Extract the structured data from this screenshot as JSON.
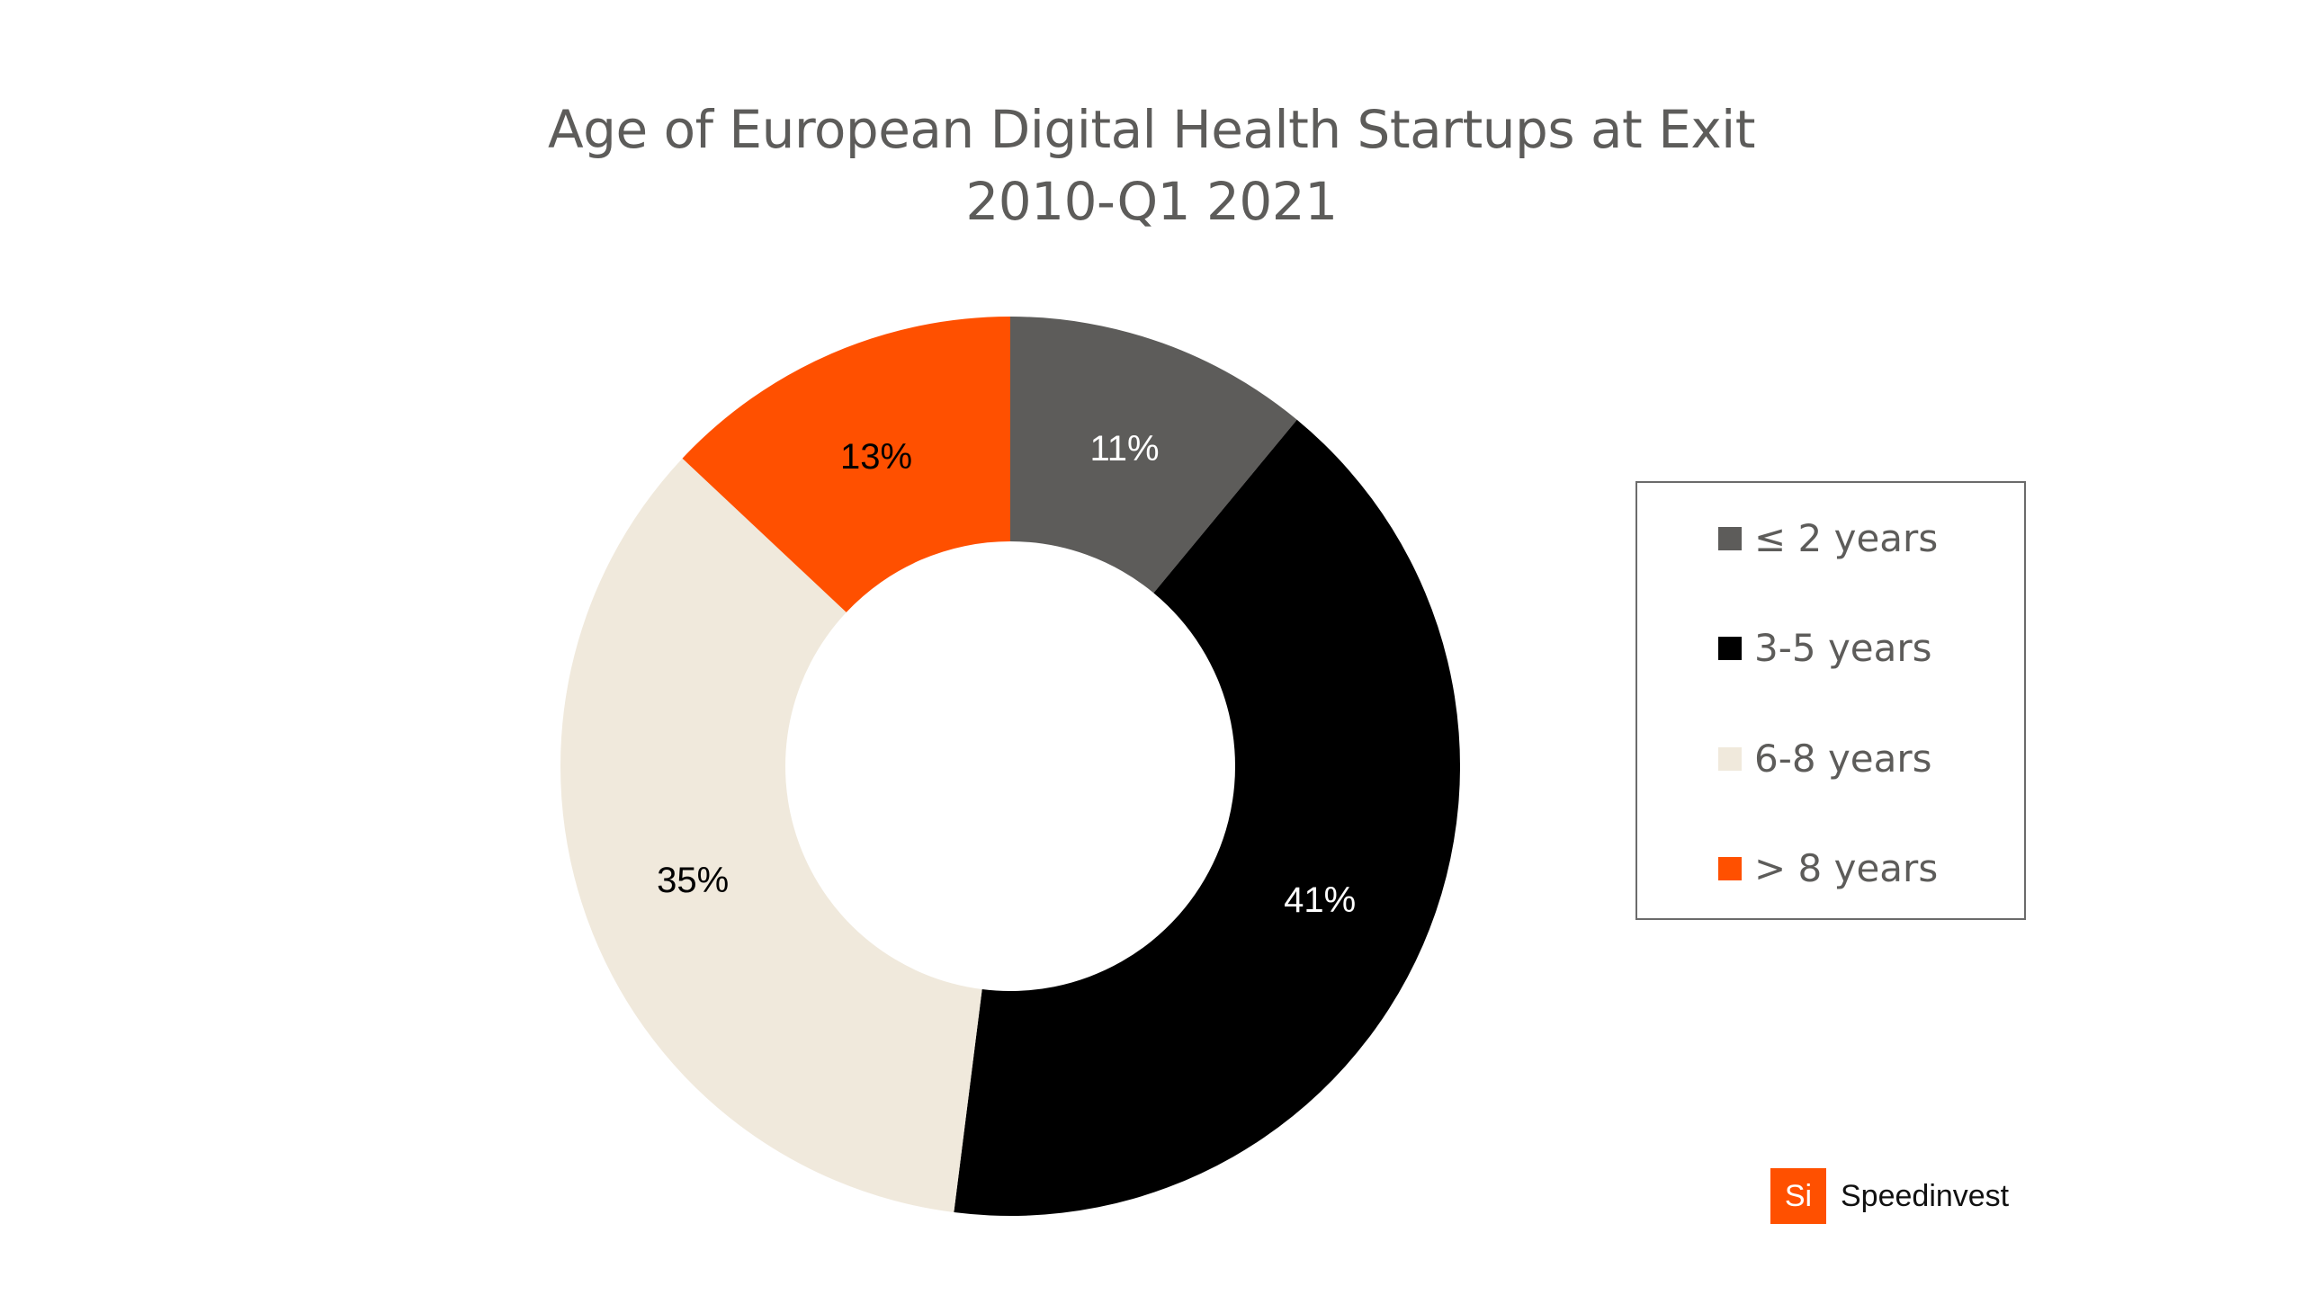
{
  "chart_data": {
    "type": "pie",
    "variant": "donut",
    "title": "Age of European Digital Health Startups at Exit",
    "subtitle": "2010-Q1 2021",
    "categories": [
      "≤ 2 years",
      "3-5 years",
      "6-8 years",
      "> 8 years"
    ],
    "values": [
      11,
      41,
      35,
      13
    ],
    "value_unit": "%",
    "data_labels": [
      "11%",
      "41%",
      "35%",
      "13%"
    ],
    "colors": [
      "#5d5c5a",
      "#000000",
      "#f0e9dc",
      "#ff5000"
    ],
    "label_colors": [
      "#ffffff",
      "#ffffff",
      "#000000",
      "#000000"
    ],
    "start_angle": "12 o'clock",
    "direction": "clockwise",
    "legend_position": "right",
    "hole_ratio": 0.5
  },
  "legend": {
    "items": [
      {
        "label": "≤ 2 years",
        "color": "#5d5c5a"
      },
      {
        "label": "3-5 years",
        "color": "#000000"
      },
      {
        "label": "6-8 years",
        "color": "#f0e9dc"
      },
      {
        "label": "> 8 years",
        "color": "#ff5000"
      }
    ]
  },
  "branding": {
    "mark": "Si",
    "name": "Speedinvest",
    "color": "#ff5000"
  }
}
